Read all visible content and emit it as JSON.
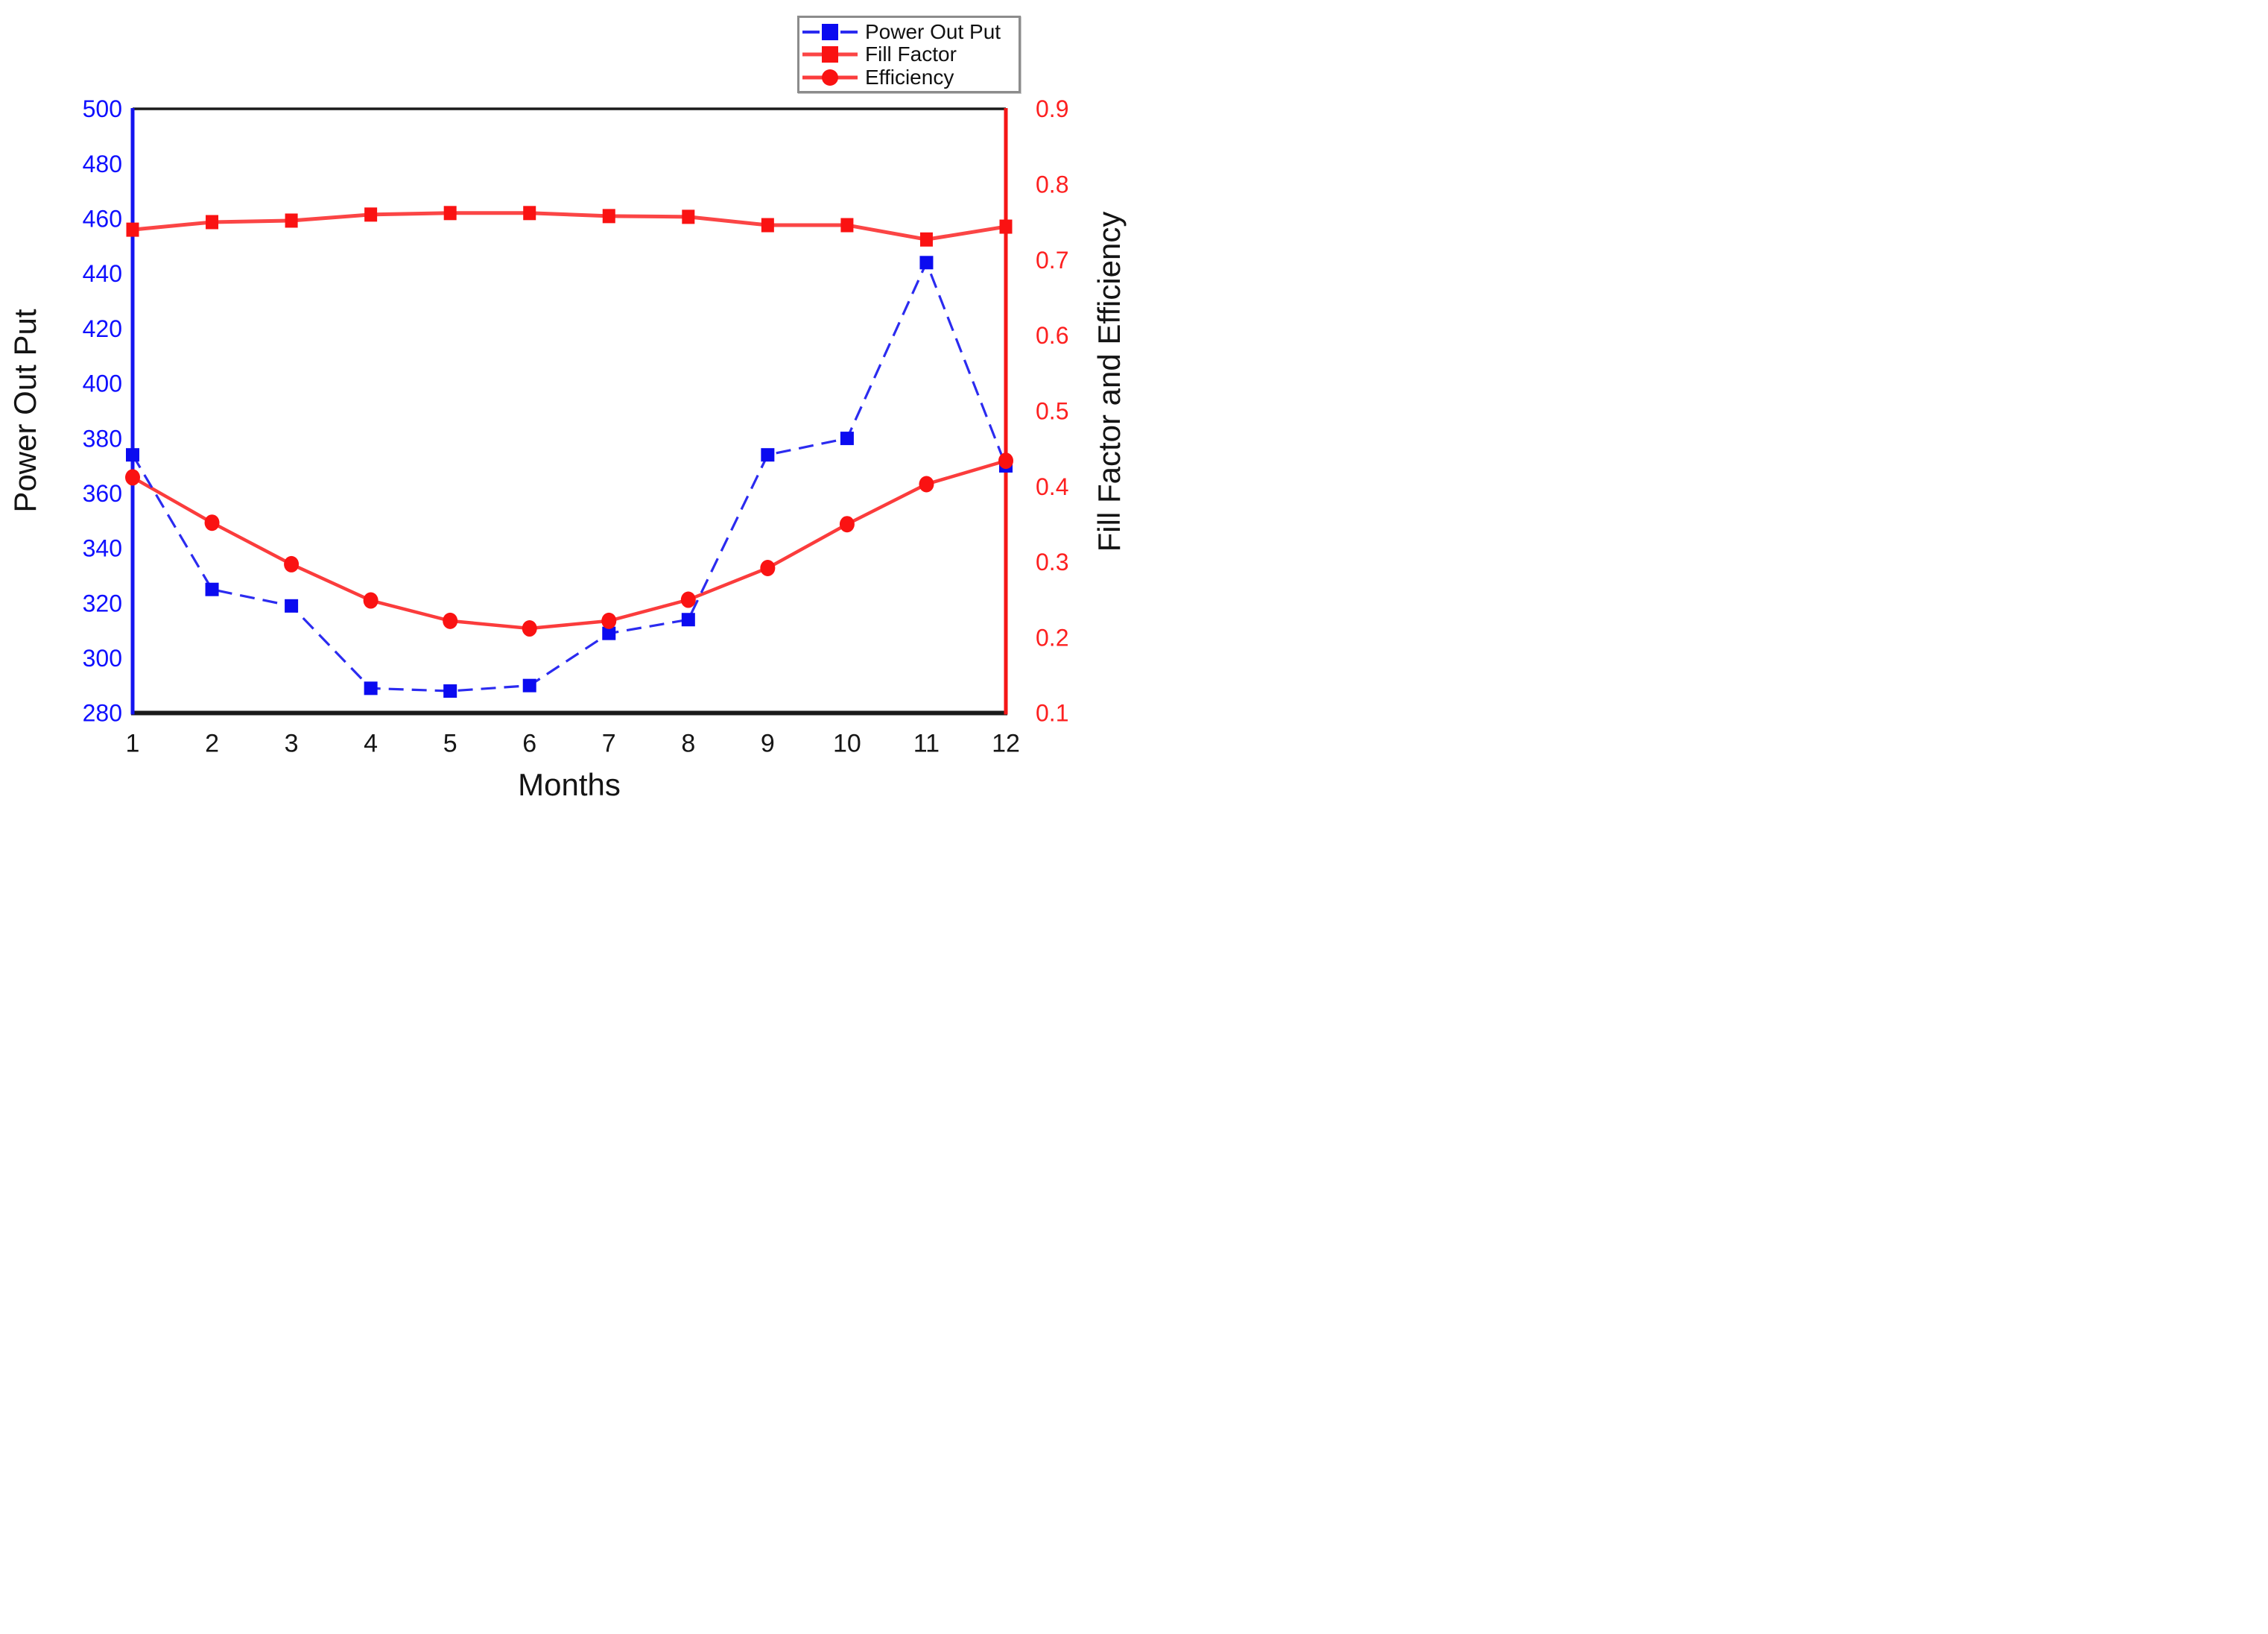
{
  "figure": {
    "xlabel": "Months",
    "left_axis_title": "Power Out Put",
    "right_axis_title": "Fill Factor and Efficiency"
  },
  "chart_data": {
    "type": "line",
    "title": "",
    "xlabel": "Months",
    "x": [
      1,
      2,
      3,
      4,
      5,
      6,
      7,
      8,
      9,
      10,
      11,
      12
    ],
    "x_tick_labels": [
      "1",
      "2",
      "3",
      "4",
      "5",
      "6",
      "7",
      "8",
      "9",
      "10",
      "11",
      "12"
    ],
    "grid": false,
    "legend_position": "top-right-outside-plot",
    "left_axis": {
      "label": "Power Out Put",
      "min": 280,
      "max": 500,
      "ticks": [
        280,
        300,
        320,
        340,
        360,
        380,
        400,
        420,
        440,
        460,
        480,
        500
      ],
      "tick_color": "#0f0fff",
      "spine_color": "#1414f0"
    },
    "right_axis": {
      "label": "Fill Factor and Efficiency",
      "min": 0.1,
      "max": 0.9,
      "ticks": [
        0.1,
        0.2,
        0.3,
        0.4,
        0.5,
        0.6,
        0.7,
        0.8,
        0.9
      ],
      "tick_labels": [
        "0.1",
        "0.2",
        "0.3",
        "0.4",
        "0.5",
        "0.6",
        "0.7",
        "0.8",
        "0.9"
      ],
      "tick_color": "#fd2020",
      "spine_color": "#f51616"
    },
    "series": [
      {
        "name": "Power Out Put",
        "axis": "left",
        "marker": "square",
        "line_style": "dashed",
        "marker_color": "#0b0bf0",
        "line_color": "#2b2bf0",
        "values": [
          374,
          325,
          319,
          289,
          288,
          290,
          309,
          314,
          374,
          380,
          444,
          370
        ]
      },
      {
        "name": "Fill Factor",
        "axis": "right",
        "marker": "square",
        "line_style": "solid",
        "marker_color": "#fa1212",
        "line_color": "#fb4545",
        "values": [
          0.74,
          0.75,
          0.752,
          0.76,
          0.762,
          0.762,
          0.758,
          0.757,
          0.746,
          0.746,
          0.727,
          0.744
        ]
      },
      {
        "name": "Efficiency",
        "axis": "right",
        "marker": "circle",
        "line_style": "solid",
        "marker_color": "#fa1212",
        "line_color": "#fb3c3c",
        "values": [
          0.412,
          0.352,
          0.297,
          0.249,
          0.222,
          0.212,
          0.222,
          0.25,
          0.292,
          0.35,
          0.403,
          0.434
        ]
      }
    ],
    "spine_top_color": "#1a1a1a",
    "spine_bottom_color": "#1a1a1a"
  }
}
